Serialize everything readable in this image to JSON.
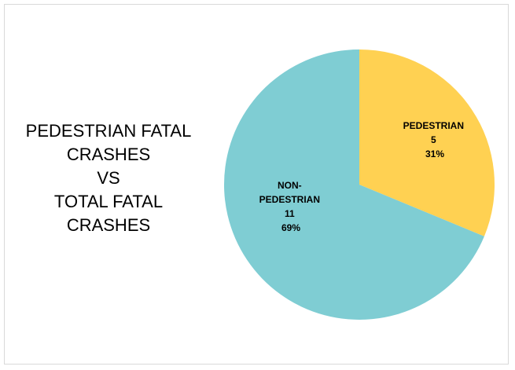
{
  "chart_data": {
    "type": "pie",
    "title_lines": [
      "PEDESTRIAN FATAL",
      "CRASHES",
      "VS",
      "TOTAL FATAL",
      "CRASHES"
    ],
    "slices": [
      {
        "label_lines": [
          "PEDESTRIAN"
        ],
        "value": 5,
        "value_label": "5",
        "percent": 31,
        "percent_label": "31%",
        "color": "#FFD152"
      },
      {
        "label_lines": [
          "NON-",
          "PEDESTRIAN"
        ],
        "value": 11,
        "value_label": "11",
        "percent": 69,
        "percent_label": "69%",
        "color": "#7FCDD3"
      }
    ],
    "start_angle_deg": 0,
    "direction": "clockwise",
    "legend": "none"
  },
  "colors": {
    "frame_border": "#D9D9D9",
    "background": "#FFFFFF",
    "text": "#000000"
  }
}
